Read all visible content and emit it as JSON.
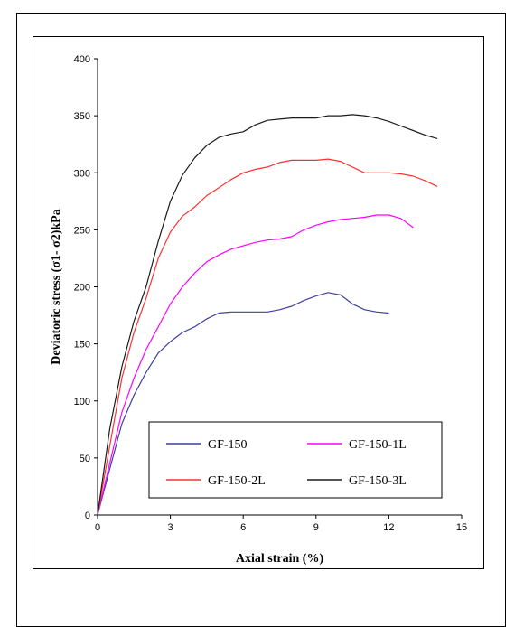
{
  "chart_data": {
    "type": "line",
    "title": "",
    "xlabel": "Axial  strain (%)",
    "ylabel": "Deviatoric stress (σ1- σ2)kPa",
    "xlim": [
      0,
      15
    ],
    "ylim": [
      0,
      400
    ],
    "xticks": [
      "0",
      "3",
      "6",
      "9",
      "12",
      "15"
    ],
    "yticks": [
      "0",
      "50",
      "100",
      "150",
      "200",
      "250",
      "300",
      "350",
      "400"
    ],
    "grid": false,
    "legend_position": "bottom-center",
    "series": [
      {
        "name": "GF-150",
        "color": "#3f3f9f",
        "points": [
          [
            0,
            0
          ],
          [
            0.5,
            40
          ],
          [
            1,
            80
          ],
          [
            1.5,
            105
          ],
          [
            2,
            125
          ],
          [
            2.5,
            142
          ],
          [
            3,
            152
          ],
          [
            3.5,
            160
          ],
          [
            4,
            165
          ],
          [
            4.5,
            172
          ],
          [
            5,
            177
          ],
          [
            5.5,
            178
          ],
          [
            6,
            178
          ],
          [
            6.5,
            178
          ],
          [
            7,
            178
          ],
          [
            7.5,
            180
          ],
          [
            8,
            183
          ],
          [
            8.5,
            188
          ],
          [
            9,
            192
          ],
          [
            9.5,
            195
          ],
          [
            10,
            193
          ],
          [
            10.5,
            185
          ],
          [
            11,
            180
          ],
          [
            11.5,
            178
          ],
          [
            12,
            177
          ]
        ]
      },
      {
        "name": "GF-150-1L",
        "color": "#ff00ff",
        "points": [
          [
            0,
            0
          ],
          [
            0.5,
            45
          ],
          [
            1,
            90
          ],
          [
            1.5,
            120
          ],
          [
            2,
            145
          ],
          [
            2.5,
            165
          ],
          [
            3,
            185
          ],
          [
            3.5,
            200
          ],
          [
            4,
            212
          ],
          [
            4.5,
            222
          ],
          [
            5,
            228
          ],
          [
            5.5,
            233
          ],
          [
            6,
            236
          ],
          [
            6.5,
            239
          ],
          [
            7,
            241
          ],
          [
            7.5,
            242
          ],
          [
            8,
            244
          ],
          [
            8.5,
            250
          ],
          [
            9,
            254
          ],
          [
            9.5,
            257
          ],
          [
            10,
            259
          ],
          [
            10.5,
            260
          ],
          [
            11,
            261
          ],
          [
            11.5,
            263
          ],
          [
            12,
            263
          ],
          [
            12.5,
            260
          ],
          [
            13,
            252
          ]
        ]
      },
      {
        "name": "GF-150-2L",
        "color": "#ff3030",
        "points": [
          [
            0,
            0
          ],
          [
            0.5,
            60
          ],
          [
            1,
            120
          ],
          [
            1.5,
            160
          ],
          [
            2,
            190
          ],
          [
            2.5,
            225
          ],
          [
            3,
            248
          ],
          [
            3.5,
            262
          ],
          [
            4,
            270
          ],
          [
            4.5,
            280
          ],
          [
            5,
            287
          ],
          [
            5.5,
            294
          ],
          [
            6,
            300
          ],
          [
            6.5,
            303
          ],
          [
            7,
            305
          ],
          [
            7.5,
            309
          ],
          [
            8,
            311
          ],
          [
            8.5,
            311
          ],
          [
            9,
            311
          ],
          [
            9.5,
            312
          ],
          [
            10,
            310
          ],
          [
            10.5,
            305
          ],
          [
            11,
            300
          ],
          [
            11.5,
            300
          ],
          [
            12,
            300
          ],
          [
            12.5,
            299
          ],
          [
            13,
            297
          ],
          [
            13.5,
            293
          ],
          [
            14,
            288
          ]
        ]
      },
      {
        "name": "GF-150-3L",
        "color": "#1a1a1a",
        "points": [
          [
            0,
            0
          ],
          [
            0.5,
            75
          ],
          [
            1,
            130
          ],
          [
            1.5,
            170
          ],
          [
            2,
            200
          ],
          [
            2.5,
            240
          ],
          [
            3,
            275
          ],
          [
            3.5,
            298
          ],
          [
            4,
            313
          ],
          [
            4.5,
            324
          ],
          [
            5,
            331
          ],
          [
            5.5,
            334
          ],
          [
            6,
            336
          ],
          [
            6.5,
            342
          ],
          [
            7,
            346
          ],
          [
            7.5,
            347
          ],
          [
            8,
            348
          ],
          [
            8.5,
            348
          ],
          [
            9,
            348
          ],
          [
            9.5,
            350
          ],
          [
            10,
            350
          ],
          [
            10.5,
            351
          ],
          [
            11,
            350
          ],
          [
            11.5,
            348
          ],
          [
            12,
            345
          ],
          [
            12.5,
            341
          ],
          [
            13,
            337
          ],
          [
            13.5,
            333
          ],
          [
            14,
            330
          ]
        ]
      }
    ]
  }
}
